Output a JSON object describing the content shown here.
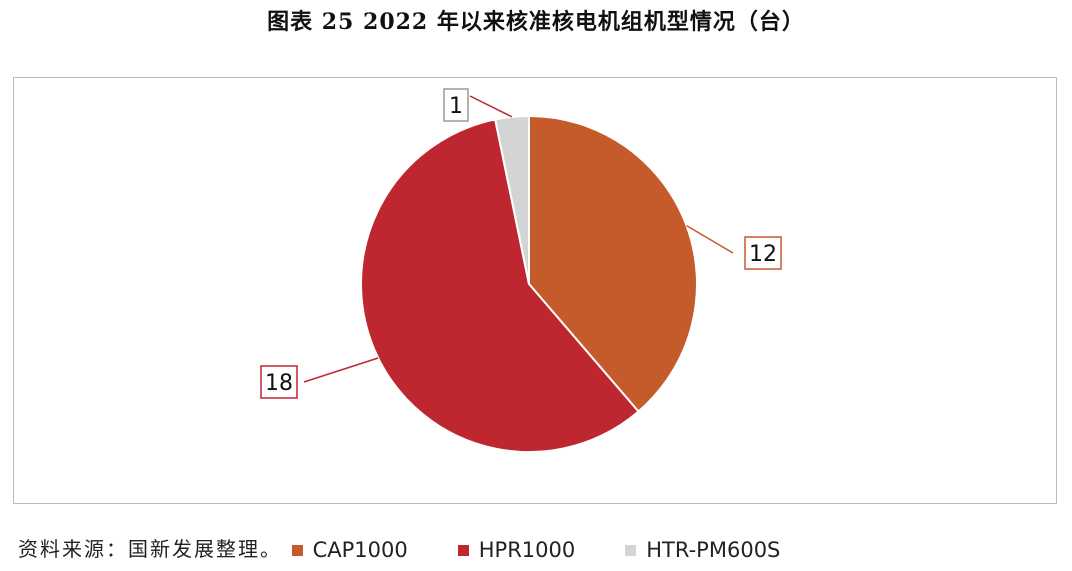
{
  "title": "图表 25  2022 年以来核准核电机组机型情况（台）",
  "source": "资料来源：国新发展整理。",
  "chart_data": {
    "type": "pie",
    "categories": [
      "CAP1000",
      "HPR1000",
      "HTR-PM600S"
    ],
    "values": [
      12,
      18,
      1
    ],
    "colors": [
      "#C55A2B",
      "#BE2630",
      "#D4D4D4"
    ],
    "legend_position": "bottom",
    "start_angle": "top, clockwise"
  }
}
